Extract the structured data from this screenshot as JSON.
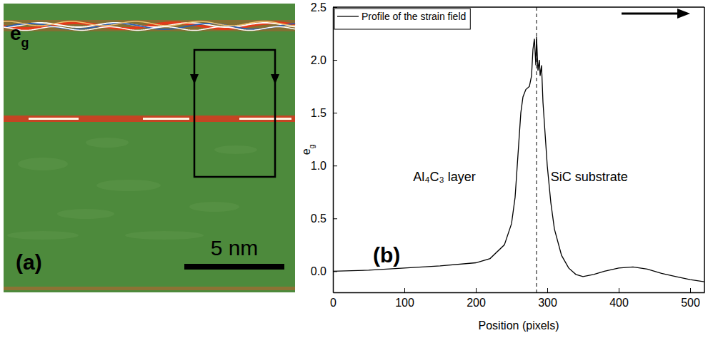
{
  "panel_a": {
    "label": "(a)",
    "field": "eg",
    "scale_bar": "5 nm"
  },
  "chart_data": {
    "type": "line",
    "panel_label": "(b)",
    "x_label": "Position (pixels)",
    "y_label": "eg",
    "annotations": [
      "Al₄C₃ layer",
      "SiC substrate"
    ],
    "vline": 285,
    "x": [
      0,
      50,
      100,
      150,
      200,
      220,
      240,
      250,
      255,
      260,
      263,
      266,
      270,
      275,
      278,
      280,
      282,
      284,
      285,
      287,
      289,
      290,
      292,
      294,
      297,
      300,
      305,
      310,
      320,
      330,
      340,
      350,
      365,
      380,
      400,
      420,
      440,
      460,
      480,
      500,
      520
    ],
    "series": [
      {
        "name": "Profile of the strain field",
        "color": "#000000",
        "line_style": "solid",
        "values": [
          0.0,
          0.01,
          0.03,
          0.05,
          0.08,
          0.12,
          0.25,
          0.45,
          0.7,
          1.2,
          1.5,
          1.65,
          1.72,
          1.75,
          1.85,
          2.1,
          2.2,
          1.95,
          2.22,
          1.9,
          2.0,
          1.85,
          1.95,
          1.6,
          1.3,
          1.0,
          0.65,
          0.4,
          0.15,
          0.03,
          -0.03,
          -0.05,
          -0.03,
          0.0,
          0.03,
          0.04,
          0.02,
          -0.02,
          -0.05,
          -0.08,
          -0.1
        ]
      }
    ],
    "xlim": [
      0,
      520
    ],
    "xticks": [
      0,
      100,
      200,
      300,
      400,
      500
    ],
    "ylim": [
      -0.2,
      2.5
    ],
    "yticks": [
      {
        "value": 0,
        "label": "0.0"
      },
      0.5,
      {
        "value": 1,
        "label": "1.0"
      },
      1.5,
      {
        "value": 2,
        "label": "2.0"
      },
      2.5
    ],
    "legend": "upper left",
    "grid": false
  }
}
